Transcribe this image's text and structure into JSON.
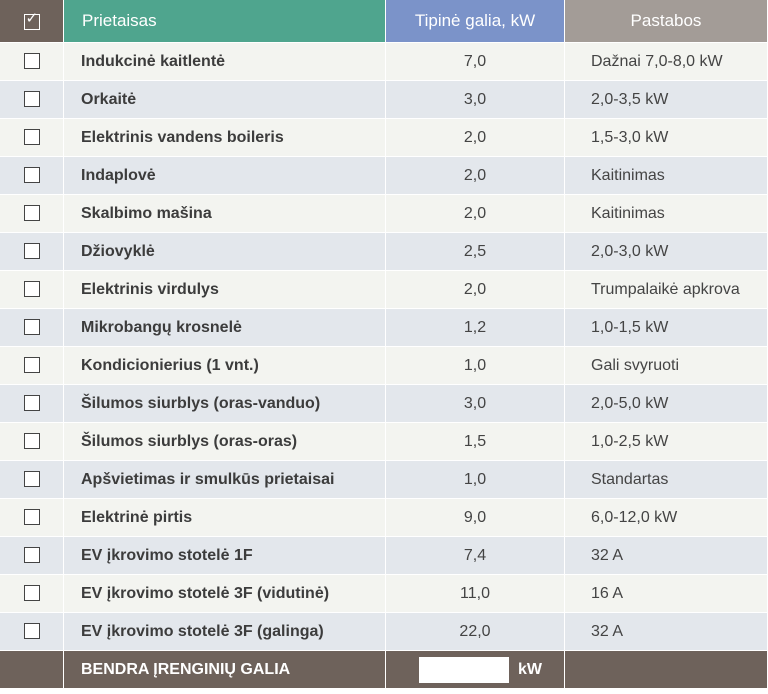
{
  "header": {
    "check_symbol": "✓",
    "appliance": "Prietaisas",
    "power": "Tipinė galia, kW",
    "notes": "Pastabos"
  },
  "rows": [
    {
      "name": "Indukcinė kaitlentė",
      "power": "7,0",
      "note": "Dažnai 7,0-8,0 kW",
      "checked": false
    },
    {
      "name": "Orkaitė",
      "power": "3,0",
      "note": "2,0-3,5 kW",
      "checked": false
    },
    {
      "name": "Elektrinis vandens boileris",
      "power": "2,0",
      "note": "1,5-3,0 kW",
      "checked": false
    },
    {
      "name": "Indaplovė",
      "power": "2,0",
      "note": "Kaitinimas",
      "checked": false
    },
    {
      "name": "Skalbimo mašina",
      "power": "2,0",
      "note": "Kaitinimas",
      "checked": false
    },
    {
      "name": "Džiovyklė",
      "power": "2,5",
      "note": "2,0-3,0 kW",
      "checked": false
    },
    {
      "name": "Elektrinis virdulys",
      "power": "2,0",
      "note": "Trumpalaikė apkrova",
      "checked": false
    },
    {
      "name": "Mikrobangų krosnelė",
      "power": "1,2",
      "note": "1,0-1,5 kW",
      "checked": false
    },
    {
      "name": "Kondicionierius (1 vnt.)",
      "power": "1,0",
      "note": "Gali svyruoti",
      "checked": false
    },
    {
      "name": "Šilumos siurblys (oras-vanduo)",
      "power": "3,0",
      "note": "2,0-5,0 kW",
      "checked": false
    },
    {
      "name": "Šilumos siurblys (oras-oras)",
      "power": "1,5",
      "note": "1,0-2,5 kW",
      "checked": false
    },
    {
      "name": "Apšvietimas ir smulkūs prietaisai",
      "power": "1,0",
      "note": "Standartas",
      "checked": false
    },
    {
      "name": "Elektrinė pirtis",
      "power": "9,0",
      "note": "6,0-12,0 kW",
      "checked": false
    },
    {
      "name": "EV įkrovimo stotelė 1F",
      "power": "7,4",
      "note": "32 A",
      "checked": false
    },
    {
      "name": "EV įkrovimo stotelė 3F (vidutinė)",
      "power": "11,0",
      "note": "16 A",
      "checked": false
    },
    {
      "name": "EV įkrovimo stotelė 3F (galinga)",
      "power": "22,0",
      "note": "32 A",
      "checked": false
    }
  ],
  "footer": {
    "label": "BENDRA ĮRENGINIŲ GALIA",
    "total_value": "",
    "unit": "kW"
  },
  "colors": {
    "header_check_bg": "#6e625b",
    "header_appliance_bg": "#4fa58e",
    "header_power_bg": "#7b93c9",
    "header_notes_bg": "#a39c97",
    "row_odd_bg": "#f3f4f0",
    "row_even_bg": "#e3e7ec",
    "footer_bg": "#6e625b"
  }
}
